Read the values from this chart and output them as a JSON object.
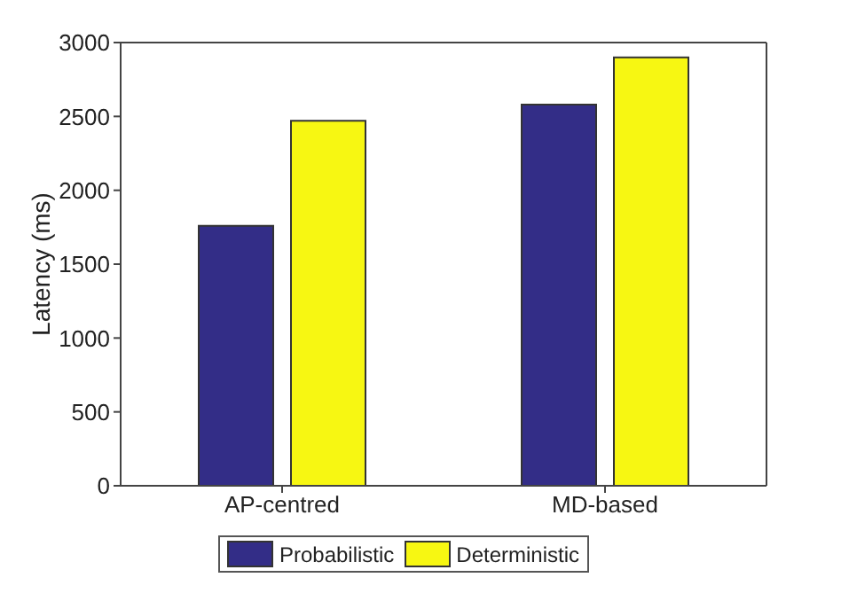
{
  "chart_data": {
    "type": "bar",
    "ylabel": "Latency (ms)",
    "categories": [
      "AP-centred",
      "MD-based"
    ],
    "series": [
      {
        "name": "Probabilistic",
        "color": "#332d87",
        "values": [
          1760,
          2580
        ]
      },
      {
        "name": "Deterministic",
        "color": "#f7f712",
        "values": [
          2470,
          2900
        ]
      }
    ],
    "ylim": [
      0,
      3000
    ],
    "yticks": [
      0,
      500,
      1000,
      1500,
      2000,
      2500,
      3000
    ],
    "grid": false,
    "legend": "bottom"
  }
}
